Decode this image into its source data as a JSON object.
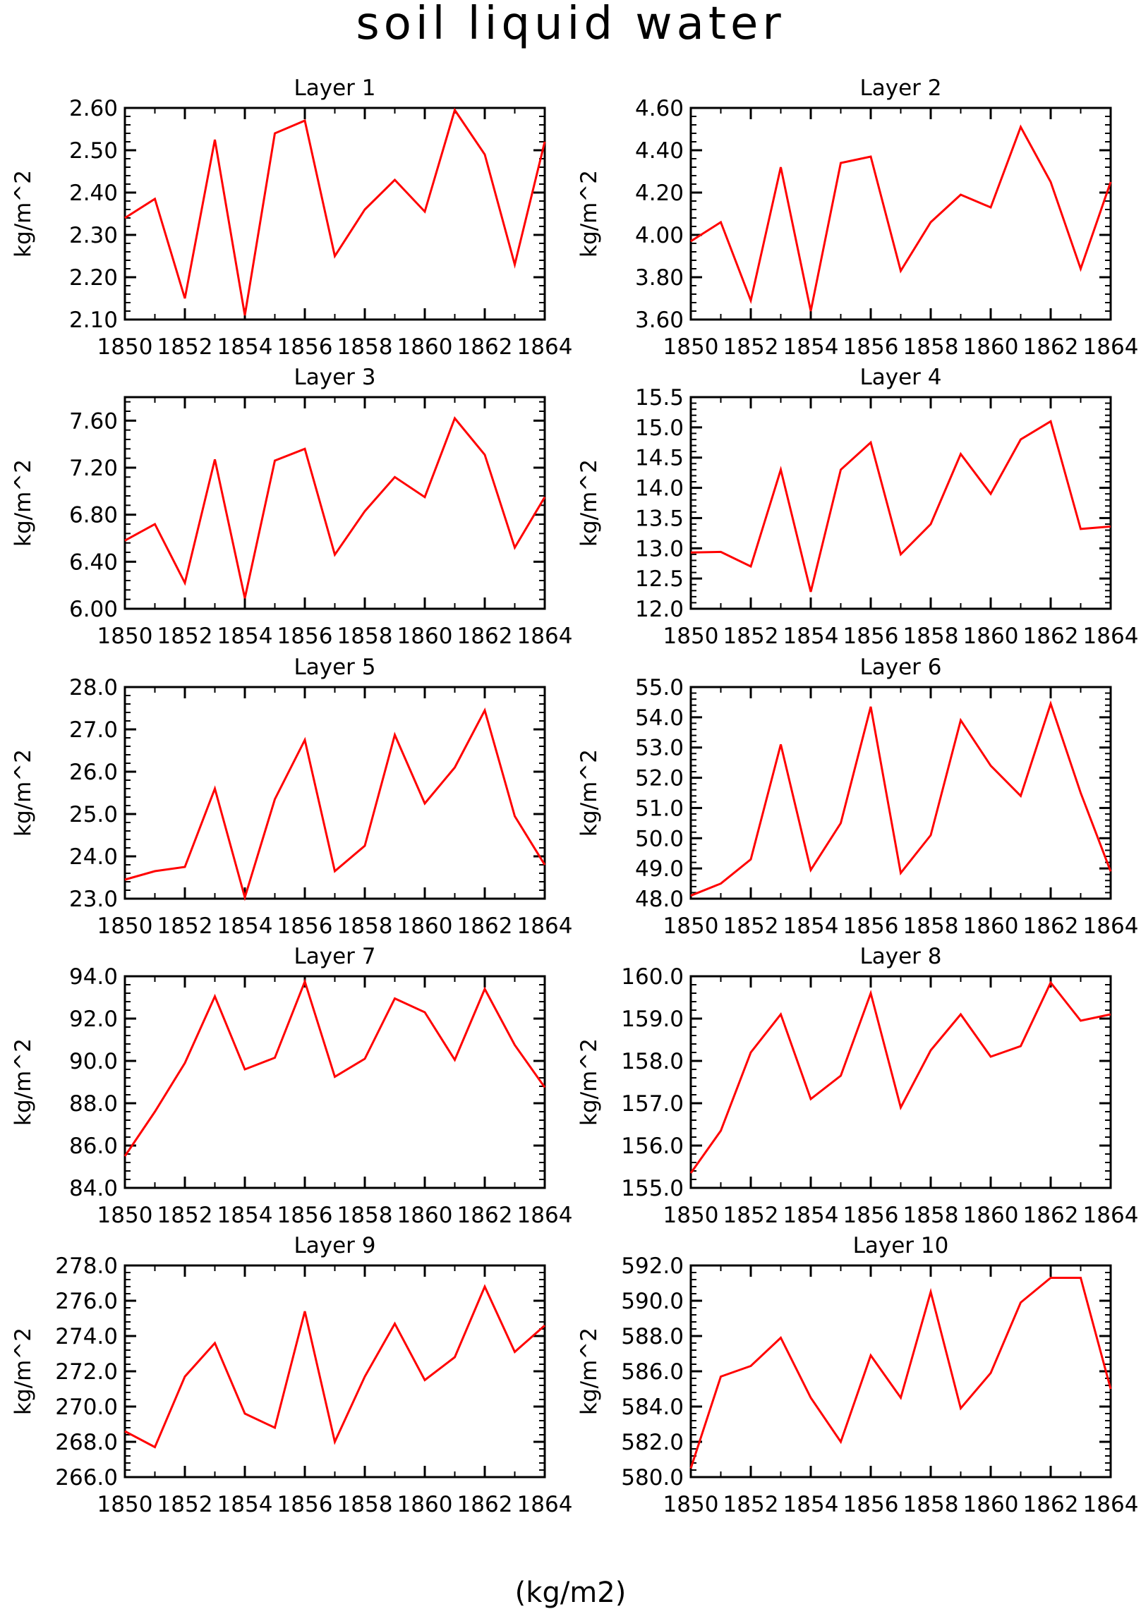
{
  "figure": {
    "title": "soil liquid water",
    "bottom_label": "(kg/m2)"
  },
  "colors": {
    "line": "#ff0000",
    "axis": "#000000",
    "text": "#000000"
  },
  "chart_data": [
    {
      "type": "line",
      "title": "Layer 1",
      "xlabel": "",
      "ylabel": "kg/m^2",
      "x": [
        1850,
        1851,
        1852,
        1853,
        1854,
        1855,
        1856,
        1857,
        1858,
        1859,
        1860,
        1861,
        1862,
        1863,
        1864
      ],
      "xticks": [
        1850,
        1852,
        1854,
        1856,
        1858,
        1860,
        1862,
        1864
      ],
      "xlim": [
        1850,
        1864
      ],
      "ylim": [
        2.1,
        2.6
      ],
      "yticks": [
        "2.10",
        "2.20",
        "2.30",
        "2.40",
        "2.50",
        "2.60"
      ],
      "y": [
        2.34,
        2.385,
        2.15,
        2.525,
        2.11,
        2.54,
        2.57,
        2.25,
        2.36,
        2.43,
        2.355,
        2.595,
        2.49,
        2.23,
        2.52
      ]
    },
    {
      "type": "line",
      "title": "Layer 2",
      "xlabel": "",
      "ylabel": "kg/m^2",
      "x": [
        1850,
        1851,
        1852,
        1853,
        1854,
        1855,
        1856,
        1857,
        1858,
        1859,
        1860,
        1861,
        1862,
        1863,
        1864
      ],
      "xticks": [
        1850,
        1852,
        1854,
        1856,
        1858,
        1860,
        1862,
        1864
      ],
      "xlim": [
        1850,
        1864
      ],
      "ylim": [
        3.6,
        4.6
      ],
      "yticks": [
        "3.60",
        "3.80",
        "4.00",
        "4.20",
        "4.40",
        "4.60"
      ],
      "y": [
        3.97,
        4.06,
        3.69,
        4.32,
        3.64,
        4.34,
        4.37,
        3.83,
        4.06,
        4.19,
        4.13,
        4.51,
        4.25,
        3.84,
        4.25
      ]
    },
    {
      "type": "line",
      "title": "Layer 3",
      "xlabel": "",
      "ylabel": "kg/m^2",
      "x": [
        1850,
        1851,
        1852,
        1853,
        1854,
        1855,
        1856,
        1857,
        1858,
        1859,
        1860,
        1861,
        1862,
        1863,
        1864
      ],
      "xticks": [
        1850,
        1852,
        1854,
        1856,
        1858,
        1860,
        1862,
        1864
      ],
      "xlim": [
        1850,
        1864
      ],
      "ylim": [
        6.0,
        7.8
      ],
      "yticks": [
        "6.00",
        "6.40",
        "6.80",
        "7.20",
        "7.60"
      ],
      "y": [
        6.58,
        6.72,
        6.22,
        7.27,
        6.09,
        7.26,
        7.36,
        6.46,
        6.83,
        7.12,
        6.95,
        7.62,
        7.31,
        6.52,
        6.95
      ]
    },
    {
      "type": "line",
      "title": "Layer 4",
      "xlabel": "",
      "ylabel": "kg/m^2",
      "x": [
        1850,
        1851,
        1852,
        1853,
        1854,
        1855,
        1856,
        1857,
        1858,
        1859,
        1860,
        1861,
        1862,
        1863,
        1864
      ],
      "xticks": [
        1850,
        1852,
        1854,
        1856,
        1858,
        1860,
        1862,
        1864
      ],
      "xlim": [
        1850,
        1864
      ],
      "ylim": [
        12.0,
        15.5
      ],
      "yticks": [
        "12.0",
        "12.5",
        "13.0",
        "13.5",
        "14.0",
        "14.5",
        "15.0",
        "15.5"
      ],
      "y": [
        12.93,
        12.94,
        12.7,
        14.3,
        12.28,
        14.3,
        14.75,
        12.9,
        13.4,
        14.56,
        13.9,
        14.8,
        15.1,
        13.32,
        13.36
      ]
    },
    {
      "type": "line",
      "title": "Layer 5",
      "xlabel": "",
      "ylabel": "kg/m^2",
      "x": [
        1850,
        1851,
        1852,
        1853,
        1854,
        1855,
        1856,
        1857,
        1858,
        1859,
        1860,
        1861,
        1862,
        1863,
        1864
      ],
      "xticks": [
        1850,
        1852,
        1854,
        1856,
        1858,
        1860,
        1862,
        1864
      ],
      "xlim": [
        1850,
        1864
      ],
      "ylim": [
        23.0,
        28.0
      ],
      "yticks": [
        "23.0",
        "24.0",
        "25.0",
        "26.0",
        "27.0",
        "28.0"
      ],
      "y": [
        23.45,
        23.65,
        23.75,
        25.6,
        23.03,
        25.35,
        26.75,
        23.65,
        24.25,
        26.87,
        25.25,
        26.1,
        27.45,
        24.95,
        23.8
      ]
    },
    {
      "type": "line",
      "title": "Layer 6",
      "xlabel": "",
      "ylabel": "kg/m^2",
      "x": [
        1850,
        1851,
        1852,
        1853,
        1854,
        1855,
        1856,
        1857,
        1858,
        1859,
        1860,
        1861,
        1862,
        1863,
        1864
      ],
      "xticks": [
        1850,
        1852,
        1854,
        1856,
        1858,
        1860,
        1862,
        1864
      ],
      "xlim": [
        1850,
        1864
      ],
      "ylim": [
        48.0,
        55.0
      ],
      "yticks": [
        "48.0",
        "49.0",
        "50.0",
        "51.0",
        "52.0",
        "53.0",
        "54.0",
        "55.0"
      ],
      "y": [
        48.1,
        48.5,
        49.3,
        53.1,
        48.95,
        50.5,
        54.35,
        48.85,
        50.1,
        53.9,
        52.4,
        51.4,
        54.45,
        51.5,
        48.9
      ]
    },
    {
      "type": "line",
      "title": "Layer 7",
      "xlabel": "",
      "ylabel": "kg/m^2",
      "x": [
        1850,
        1851,
        1852,
        1853,
        1854,
        1855,
        1856,
        1857,
        1858,
        1859,
        1860,
        1861,
        1862,
        1863,
        1864
      ],
      "xticks": [
        1850,
        1852,
        1854,
        1856,
        1858,
        1860,
        1862,
        1864
      ],
      "xlim": [
        1850,
        1864
      ],
      "ylim": [
        84.0,
        94.0
      ],
      "yticks": [
        "84.0",
        "86.0",
        "88.0",
        "90.0",
        "92.0",
        "94.0"
      ],
      "y": [
        85.5,
        87.6,
        89.9,
        93.05,
        89.6,
        90.15,
        93.75,
        89.25,
        90.1,
        92.95,
        92.3,
        90.05,
        93.4,
        90.75,
        88.75
      ]
    },
    {
      "type": "line",
      "title": "Layer 8",
      "xlabel": "",
      "ylabel": "kg/m^2",
      "x": [
        1850,
        1851,
        1852,
        1853,
        1854,
        1855,
        1856,
        1857,
        1858,
        1859,
        1860,
        1861,
        1862,
        1863,
        1864
      ],
      "xticks": [
        1850,
        1852,
        1854,
        1856,
        1858,
        1860,
        1862,
        1864
      ],
      "xlim": [
        1850,
        1864
      ],
      "ylim": [
        155.0,
        160.0
      ],
      "yticks": [
        "155.0",
        "156.0",
        "157.0",
        "158.0",
        "159.0",
        "160.0"
      ],
      "y": [
        155.35,
        156.35,
        158.2,
        159.1,
        157.1,
        157.65,
        159.6,
        156.9,
        158.25,
        159.1,
        158.1,
        158.35,
        159.85,
        158.95,
        159.1
      ]
    },
    {
      "type": "line",
      "title": "Layer 9",
      "xlabel": "",
      "ylabel": "kg/m^2",
      "x": [
        1850,
        1851,
        1852,
        1853,
        1854,
        1855,
        1856,
        1857,
        1858,
        1859,
        1860,
        1861,
        1862,
        1863,
        1864
      ],
      "xticks": [
        1850,
        1852,
        1854,
        1856,
        1858,
        1860,
        1862,
        1864
      ],
      "xlim": [
        1850,
        1864
      ],
      "ylim": [
        266.0,
        278.0
      ],
      "yticks": [
        "266.0",
        "268.0",
        "270.0",
        "272.0",
        "274.0",
        "276.0",
        "278.0"
      ],
      "y": [
        268.6,
        267.7,
        271.7,
        273.6,
        269.6,
        268.8,
        275.4,
        268.0,
        271.7,
        274.7,
        271.5,
        272.8,
        276.8,
        273.1,
        274.6
      ]
    },
    {
      "type": "line",
      "title": "Layer 10",
      "xlabel": "",
      "ylabel": "kg/m^2",
      "x": [
        1850,
        1851,
        1852,
        1853,
        1854,
        1855,
        1856,
        1857,
        1858,
        1859,
        1860,
        1861,
        1862,
        1863,
        1864
      ],
      "xticks": [
        1850,
        1852,
        1854,
        1856,
        1858,
        1860,
        1862,
        1864
      ],
      "xlim": [
        1850,
        1864
      ],
      "ylim": [
        580.0,
        592.0
      ],
      "yticks": [
        "580.0",
        "582.0",
        "584.0",
        "586.0",
        "588.0",
        "590.0",
        "592.0"
      ],
      "y": [
        580.5,
        585.7,
        586.3,
        587.9,
        584.5,
        582.0,
        586.9,
        584.5,
        590.5,
        583.9,
        585.9,
        589.9,
        591.3,
        591.3,
        585.0
      ]
    }
  ]
}
